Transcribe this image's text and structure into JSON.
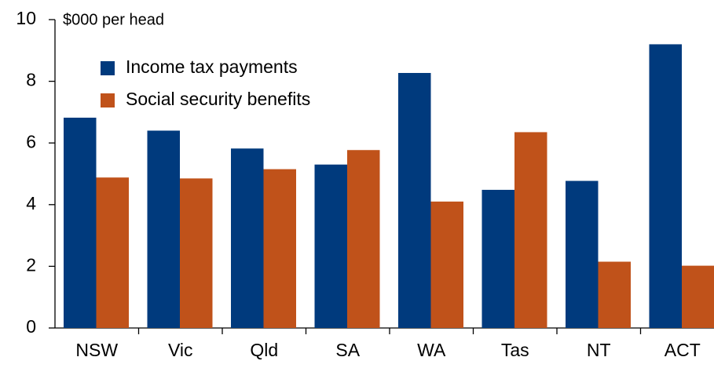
{
  "chart_data": {
    "type": "bar",
    "y_axis_label": "$000 per head",
    "categories": [
      "NSW",
      "Vic",
      "Qld",
      "SA",
      "WA",
      "Tas",
      "NT",
      "ACT"
    ],
    "series": [
      {
        "name": "Income tax payments",
        "color": "#003a7d",
        "values": [
          6.82,
          6.4,
          5.82,
          5.3,
          8.27,
          4.48,
          4.77,
          9.2
        ]
      },
      {
        "name": "Social security benefits",
        "color": "#c0521a",
        "values": [
          4.88,
          4.85,
          5.15,
          5.77,
          4.1,
          6.35,
          2.15,
          2.02
        ]
      }
    ],
    "ylim": [
      0,
      10
    ],
    "yticks": [
      0,
      2,
      4,
      6,
      8,
      10
    ],
    "legend": "upper left"
  }
}
